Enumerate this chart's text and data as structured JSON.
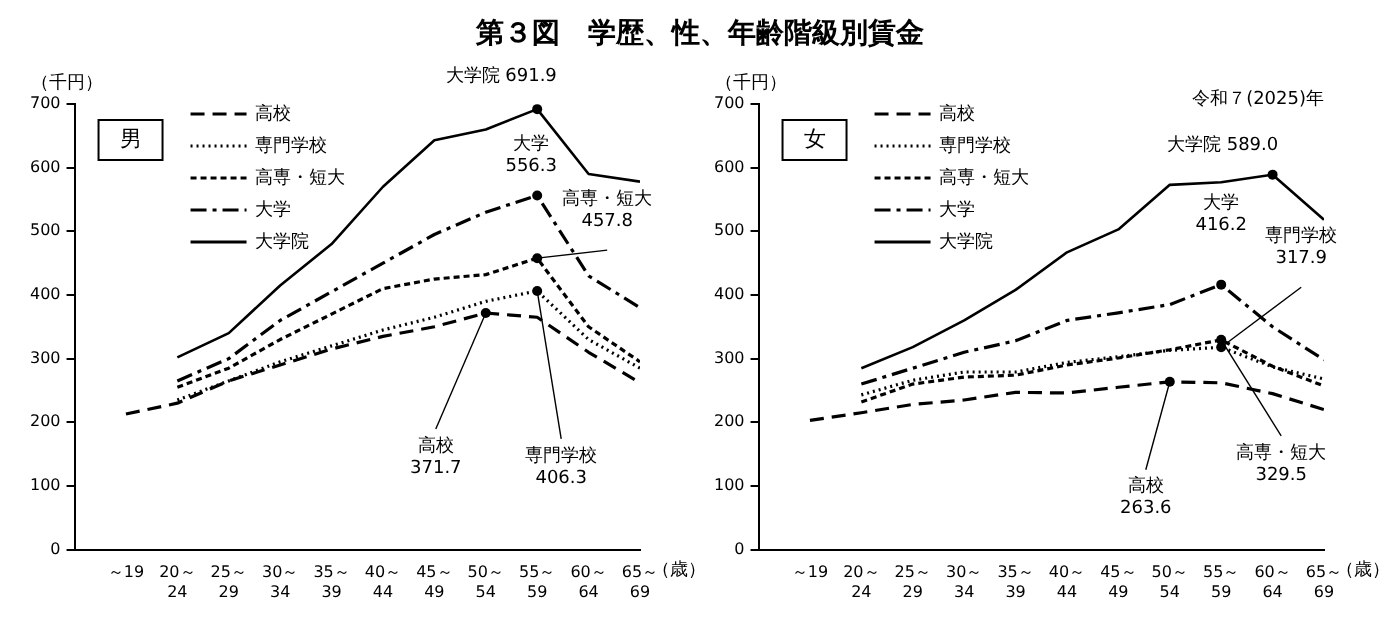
{
  "chart_data": [
    {
      "type": "line",
      "title": "第３図　学歴、性、年齢階級別賃金",
      "subtitle": "男",
      "ylabel": "（千円）",
      "xlabel": "（歳）",
      "categories": [
        "～19",
        "20～24",
        "25～29",
        "30～34",
        "35～39",
        "40～44",
        "45～49",
        "50～54",
        "55～59",
        "60～64",
        "65～69"
      ],
      "series": [
        {
          "name": "高校",
          "color": "#000000",
          "line_style": "dashed",
          "values": [
            213,
            230,
            265,
            290,
            315,
            335,
            350,
            371.7,
            365,
            310,
            262
          ]
        },
        {
          "name": "専門学校",
          "color": "#000000",
          "line_style": "dotted",
          "values": [
            null,
            235,
            265,
            295,
            320,
            345,
            365,
            390,
            406.3,
            330,
            285
          ]
        },
        {
          "name": "高専・短大",
          "color": "#000000",
          "line_style": "dashed",
          "values": [
            null,
            255,
            285,
            330,
            370,
            410,
            425,
            432,
            457.8,
            350,
            295
          ]
        },
        {
          "name": "大学",
          "color": "#000000",
          "line_style": "dashdot",
          "values": [
            null,
            265,
            300,
            360,
            405,
            450,
            495,
            530,
            556.3,
            430,
            380
          ]
        },
        {
          "name": "大学院",
          "color": "#000000",
          "line_style": "solid",
          "values": [
            null,
            302,
            340,
            415,
            480,
            570,
            643,
            660,
            691.9,
            590,
            578
          ]
        }
      ],
      "ylim": [
        0,
        700
      ],
      "yticks": [
        0,
        100,
        200,
        300,
        400,
        500,
        600,
        700
      ],
      "grid": false,
      "legend": "top left",
      "marker": "none",
      "annotations": [
        {
          "text": "大学院 691.9",
          "x": "55～59",
          "y": 691.9
        },
        {
          "text": "大学\n556.3",
          "x": "55～59",
          "y": 556.3
        },
        {
          "text": "高専・短大\n457.8",
          "x": "55～59",
          "y": 457.8
        },
        {
          "text": "高校\n371.7",
          "x": "50～54",
          "y": 371.7
        },
        {
          "text": "専門学校\n406.3",
          "x": "55～59",
          "y": 406.3
        }
      ]
    },
    {
      "type": "line",
      "subtitle": "女",
      "ylabel": "（千円）",
      "xlabel": "（歳）",
      "categories": [
        "～19",
        "20～24",
        "25～29",
        "30～34",
        "35～39",
        "40～44",
        "45～49",
        "50～54",
        "55～59",
        "60～64",
        "65～69"
      ],
      "series": [
        {
          "name": "高校",
          "color": "#000000",
          "line_style": "dashed",
          "values": [
            203,
            215,
            228,
            235,
            247,
            246,
            255,
            263.6,
            262,
            245,
            220
          ]
        },
        {
          "name": "専門学校",
          "color": "#000000",
          "line_style": "dotted",
          "values": [
            null,
            243,
            266,
            279,
            279,
            294,
            303,
            313,
            317.9,
            287,
            268
          ]
        },
        {
          "name": "高専・短大",
          "color": "#000000",
          "line_style": "dashed",
          "values": [
            null,
            232,
            260,
            271,
            274,
            290,
            301,
            314,
            329.5,
            288,
            257
          ]
        },
        {
          "name": "大学",
          "color": "#000000",
          "line_style": "dashdot",
          "values": [
            null,
            260,
            285,
            310,
            328,
            360,
            372,
            385,
            416.2,
            350,
            298
          ]
        },
        {
          "name": "大学院",
          "color": "#000000",
          "line_style": "solid",
          "values": [
            null,
            285,
            318,
            360,
            408,
            467,
            503,
            573,
            577,
            589.0,
            518
          ]
        }
      ],
      "ylim": [
        0,
        700
      ],
      "yticks": [
        0,
        100,
        200,
        300,
        400,
        500,
        600,
        700
      ],
      "grid": false,
      "legend": "top left",
      "marker": "none",
      "annotations": [
        "令和７(2025)年",
        {
          "text": "大学院 589.0",
          "x": "60～64",
          "y": 589.0
        },
        {
          "text": "大学\n416.2",
          "x": "55～59",
          "y": 416.2
        },
        {
          "text": "専門学校\n317.9",
          "x": "55～59",
          "y": 317.9
        },
        {
          "text": "高校\n263.6",
          "x": "50～54",
          "y": 263.6
        },
        {
          "text": "高専・短大\n329.5",
          "x": "55～59",
          "y": 329.5
        }
      ]
    }
  ]
}
